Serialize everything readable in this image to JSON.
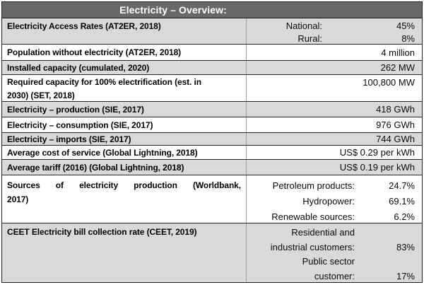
{
  "table": {
    "title": "Electricity – Overview:",
    "colors": {
      "header_bg": "#686868",
      "header_text": "#ffffff",
      "shaded_row_bg": "#d9d9d9",
      "white_row_bg": "#ffffff",
      "border": "#262626",
      "column_divider": "#9e9e9e",
      "text": "#000000"
    },
    "rows": [
      {
        "label": "Electricity Access Rates (AT2ER, 2018)",
        "pairs": [
          {
            "label": "National:",
            "value": "45%"
          },
          {
            "label": "Rural:",
            "value": "8%"
          }
        ]
      },
      {
        "label": "Population without electricity (AT2ER, 2018)",
        "value": "4 million"
      },
      {
        "label": "Installed capacity (cumulated, 2020)",
        "value": "262 MW"
      },
      {
        "label": "Required capacity for 100% electrification (est. in\n2030) (SET, 2018)",
        "value": "100,800 MW"
      },
      {
        "label": "Electricity – production (SIE, 2017)",
        "value": "418 GWh"
      },
      {
        "label": "Electricity – consumption (SIE, 2017)",
        "value": "976 GWh"
      },
      {
        "label": "Electricity – imports (SIE, 2017)",
        "value": "744 GWh"
      },
      {
        "label": "Average cost of service (Global Lightning, 2018)",
        "value": "US$ 0.29 per kWh"
      },
      {
        "label": "Average tariff (2016) (Global Lightning, 2018)",
        "value": "US$ 0.19 per kWh"
      },
      {
        "label": "Sources of electricity production (Worldbank,\n2017)",
        "pairs": [
          {
            "label": "Petroleum products:",
            "value": "24.7%"
          },
          {
            "label": "Hydropower:",
            "value": "69.1%"
          },
          {
            "label": "Renewable sources:",
            "value": "6.2%"
          }
        ]
      },
      {
        "label": "CEET Electricity bill collection rate (CEET, 2019)",
        "pairs": [
          {
            "label": "Residential and\nindustrial customers:",
            "value": "83%"
          },
          {
            "label": "Public sector\ncustomer:",
            "value": "17%"
          }
        ]
      }
    ]
  }
}
